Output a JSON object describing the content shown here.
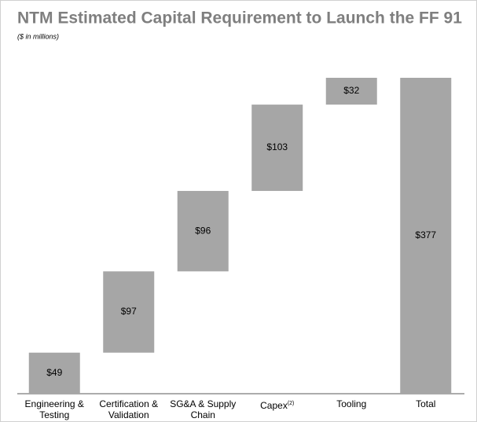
{
  "chart_data": {
    "type": "waterfall",
    "title": "NTM Estimated Capital Requirement to Launch the FF 91",
    "subtitle": "($ in millions)",
    "categories": [
      "Engineering & Testing",
      "Certification & Validation",
      "SG&A & Supply Chain",
      "Capex",
      "Tooling",
      "Total"
    ],
    "category_superscripts": [
      null,
      null,
      null,
      "(2)",
      null,
      null
    ],
    "values": [
      49,
      97,
      96,
      103,
      32,
      377
    ],
    "value_labels": [
      "$49",
      "$97",
      "$96",
      "$103",
      "$32",
      "$377"
    ],
    "is_total": [
      false,
      false,
      false,
      false,
      false,
      true
    ],
    "color": "#a6a6a6"
  }
}
